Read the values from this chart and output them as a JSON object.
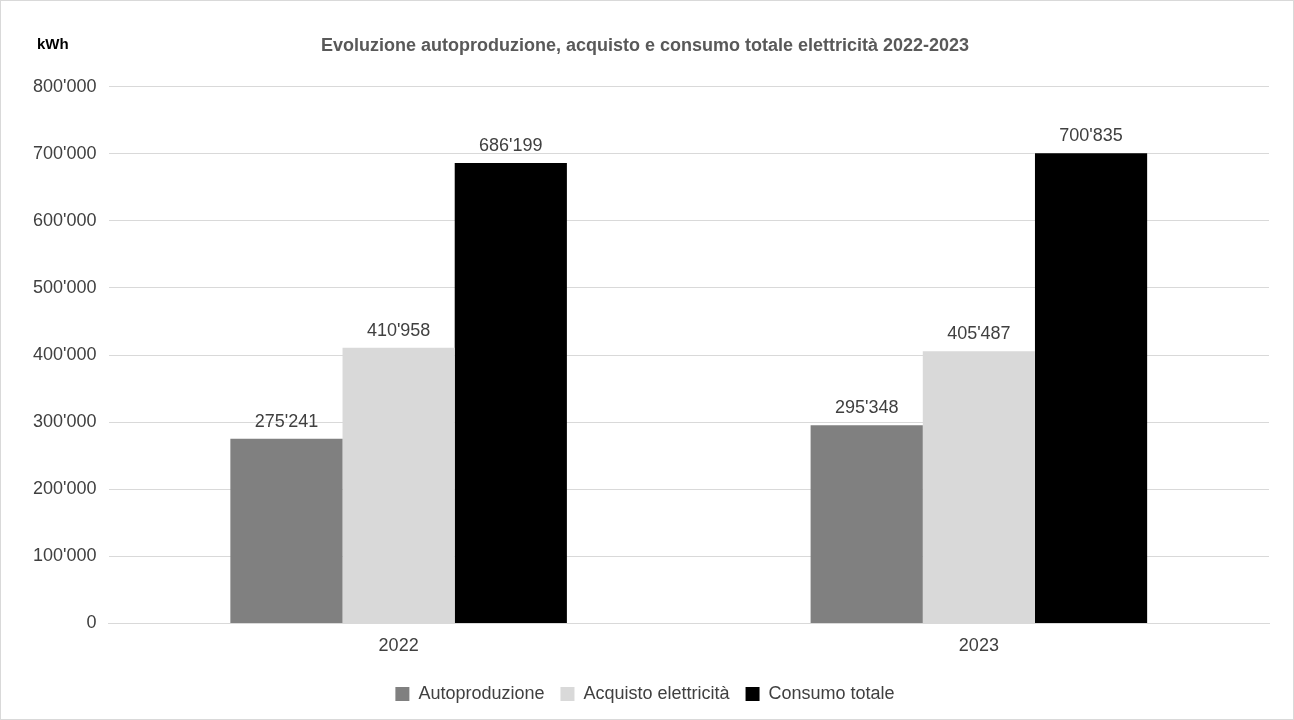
{
  "chart_data": {
    "type": "bar",
    "title": "Evoluzione autoproduzione, acquisto e consumo totale elettricità 2022-2023",
    "ylabel": "kWh",
    "categories": [
      "2022",
      "2023"
    ],
    "series": [
      {
        "name": "Autoproduzione",
        "color": "#808080",
        "values": [
          275241,
          295348
        ],
        "value_labels": [
          "275'241",
          "295'348"
        ]
      },
      {
        "name": "Acquisto elettricità",
        "color": "#d9d9d9",
        "values": [
          410958,
          405487
        ],
        "value_labels": [
          "410'958",
          "405'487"
        ]
      },
      {
        "name": "Consumo totale",
        "color": "#000000",
        "values": [
          686199,
          700835
        ],
        "value_labels": [
          "686'199",
          "700'835"
        ]
      }
    ],
    "ylim": [
      0,
      800000
    ],
    "yticks": [
      {
        "value": 0,
        "label": "0"
      },
      {
        "value": 100000,
        "label": "100'000"
      },
      {
        "value": 200000,
        "label": "200'000"
      },
      {
        "value": 300000,
        "label": "300'000"
      },
      {
        "value": 400000,
        "label": "400'000"
      },
      {
        "value": 500000,
        "label": "500'000"
      },
      {
        "value": 600000,
        "label": "600'000"
      },
      {
        "value": 700000,
        "label": "700'000"
      },
      {
        "value": 800000,
        "label": "800'000"
      }
    ],
    "grid": "y",
    "legend": "bottom"
  }
}
